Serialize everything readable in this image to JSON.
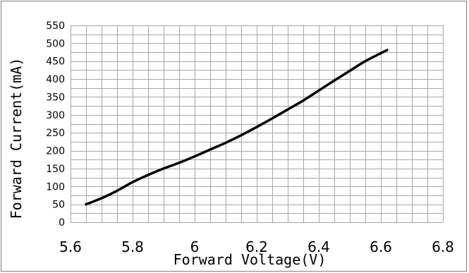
{
  "chart_data": {
    "type": "line",
    "title": "",
    "xlabel": "Forward Voltage(V)",
    "ylabel": "Forward Current(mA)",
    "xlim": [
      5.6,
      6.8
    ],
    "ylim": [
      0,
      550
    ],
    "x_ticks": [
      "5.6",
      "5.8",
      "6",
      "6.2",
      "6.4",
      "6.6",
      "6.8"
    ],
    "x_tick_values": [
      5.6,
      5.8,
      6.0,
      6.2,
      6.4,
      6.6,
      6.8
    ],
    "y_ticks": [
      "0",
      "50",
      "100",
      "150",
      "200",
      "250",
      "300",
      "350",
      "400",
      "450",
      "500",
      "550"
    ],
    "y_tick_values": [
      0,
      50,
      100,
      150,
      200,
      250,
      300,
      350,
      400,
      450,
      500,
      550
    ],
    "grid": true,
    "x_grid_step": 0.05,
    "y_grid_step": 25,
    "legend": "none",
    "colors": {
      "line": "#000000",
      "grid": "#a6a6a6",
      "border": "#7f7f7f"
    },
    "series": [
      {
        "x": [
          5.65,
          5.7,
          5.75,
          5.8,
          5.85,
          5.9,
          5.95,
          6.0,
          6.05,
          6.1,
          6.15,
          6.2,
          6.25,
          6.3,
          6.35,
          6.4,
          6.45,
          6.5,
          6.55,
          6.62
        ],
        "y": [
          50,
          67,
          88,
          112,
          132,
          150,
          166,
          184,
          203,
          222,
          243,
          266,
          290,
          315,
          340,
          368,
          396,
          423,
          450,
          481
        ]
      }
    ]
  }
}
